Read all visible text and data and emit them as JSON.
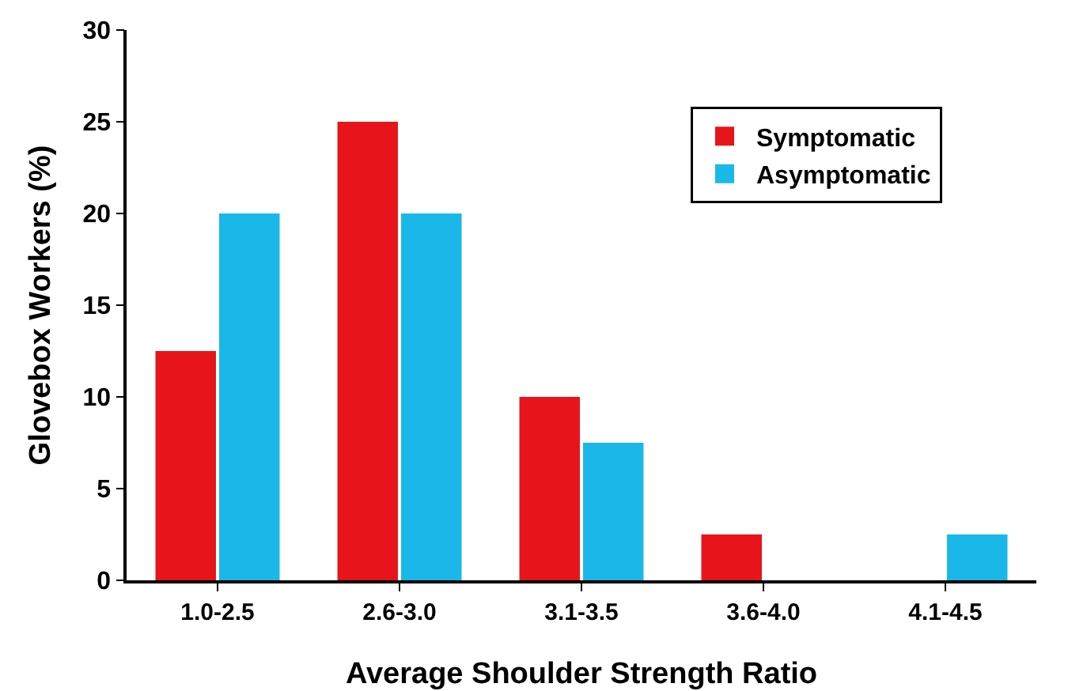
{
  "chart_data": {
    "type": "bar",
    "xlabel": "Average Shoulder Strength Ratio",
    "ylabel": "Glovebox Workers (%)",
    "categories": [
      "1.0-2.5",
      "2.6-3.0",
      "3.1-3.5",
      "3.6-4.0",
      "4.1-4.5"
    ],
    "series": [
      {
        "name": "Symptomatic",
        "color": "#e8141b",
        "values": [
          12.5,
          25,
          10,
          2.5,
          0
        ]
      },
      {
        "name": "Asymptomatic",
        "color": "#1ab8e8",
        "values": [
          20,
          20,
          7.5,
          0,
          2.5
        ]
      }
    ],
    "ylim": [
      0,
      30
    ],
    "yticks": [
      0,
      5,
      10,
      15,
      20,
      25,
      30
    ],
    "grid": false,
    "legend": "top right"
  }
}
